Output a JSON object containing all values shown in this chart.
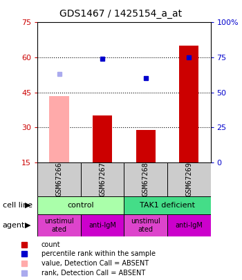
{
  "title": "GDS1467 / 1425154_a_at",
  "samples": [
    "GSM67266",
    "GSM67267",
    "GSM67268",
    "GSM67269"
  ],
  "bar_values": [
    43.5,
    35.0,
    29.0,
    65.0
  ],
  "bar_colors": [
    "#ffaaaa",
    "#cc0000",
    "#cc0000",
    "#cc0000"
  ],
  "rank_values": [
    63,
    74,
    60,
    75
  ],
  "rank_colors": [
    "#aaaaee",
    "#0000cc",
    "#0000cc",
    "#0000cc"
  ],
  "ylim_left": [
    15,
    75
  ],
  "ylim_right": [
    0,
    100
  ],
  "yticks_left": [
    15,
    30,
    45,
    60,
    75
  ],
  "yticks_right": [
    0,
    25,
    50,
    75,
    100
  ],
  "ytick_labels_right": [
    "0",
    "25",
    "50",
    "75",
    "100%"
  ],
  "grid_lines": [
    30,
    45,
    60
  ],
  "cell_line_labels": [
    "control",
    "TAK1 deficient"
  ],
  "cell_line_spans": [
    [
      0,
      2
    ],
    [
      2,
      4
    ]
  ],
  "cell_line_colors": [
    "#aaffaa",
    "#44dd88"
  ],
  "agent_labels": [
    "unstimul\nated",
    "anti-IgM",
    "unstimul\nated",
    "anti-IgM"
  ],
  "agent_colors_alt": [
    "#dd44cc",
    "#cc00cc",
    "#dd44cc",
    "#cc00cc"
  ],
  "legend_colors": [
    "#cc0000",
    "#0000cc",
    "#ffaaaa",
    "#aaaaee"
  ],
  "legend_labels": [
    "count",
    "percentile rank within the sample",
    "value, Detection Call = ABSENT",
    "rank, Detection Call = ABSENT"
  ],
  "left_tick_color": "#cc0000",
  "right_tick_color": "#0000cc",
  "bar_width": 0.45,
  "sample_box_color": "#cccccc"
}
